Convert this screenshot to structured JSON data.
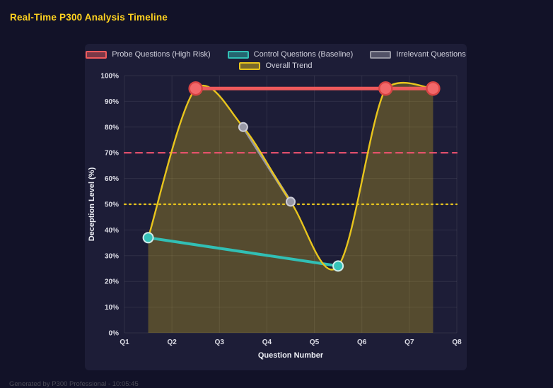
{
  "page": {
    "title": "Real-Time P300 Analysis Timeline",
    "footer": "Generated by P300 Professional - 10:05:45"
  },
  "colors": {
    "background": "#121228",
    "panel": "#1d1d37",
    "title_text": "#ffd21f",
    "grid": "rgba(255,255,255,0.08)",
    "tick_text": "#dfdfe8",
    "axis_title_text": "#eef0f6",
    "footer_text": "#4d4d58"
  },
  "chart_data": {
    "type": "line",
    "title": "Real-Time P300 Analysis Timeline",
    "xlabel": "Question Number",
    "ylabel": "Deception Level (%)",
    "x_ticks": [
      "Q1",
      "Q2",
      "Q3",
      "Q4",
      "Q5",
      "Q6",
      "Q7",
      "Q8"
    ],
    "x_range": [
      1,
      8
    ],
    "ylim": [
      0,
      100
    ],
    "y_tick_step": 10,
    "y_tick_suffix": "%",
    "grid": true,
    "legend_position": "top",
    "series": [
      {
        "name": "Probe Questions (High Risk)",
        "color": "#ee5a5c",
        "line_width": 5,
        "smooth": false,
        "marker_radius": 9,
        "marker_fill": "#f2686a",
        "marker_stroke": "#d84444",
        "marker_stroke_width": 2.5,
        "points": [
          [
            2.5,
            95
          ],
          [
            6.5,
            95
          ],
          [
            7.5,
            95
          ]
        ]
      },
      {
        "name": "Control Questions (Baseline)",
        "color": "#31bfb5",
        "line_width": 4,
        "smooth": false,
        "marker_radius": 7,
        "marker_fill": "#35c2b8",
        "marker_stroke": "#cfecea",
        "marker_stroke_width": 2,
        "points": [
          [
            1.5,
            37
          ],
          [
            5.5,
            26
          ]
        ]
      },
      {
        "name": "Irrelevant Questions",
        "color": "#9595a2",
        "line_width": 4,
        "smooth": false,
        "marker_radius": 6,
        "marker_fill": "#9898a6",
        "marker_stroke": "#cdcdd8",
        "marker_stroke_width": 2,
        "points": [
          [
            3.5,
            80
          ],
          [
            4.5,
            51
          ]
        ]
      },
      {
        "name": "Overall Trend",
        "color": "#e8c51d",
        "line_width": 2.4,
        "smooth": true,
        "fill": true,
        "fill_color": "rgba(232,197,29,0.28)",
        "marker_radius": 0,
        "points": [
          [
            1.5,
            37
          ],
          [
            2.5,
            95
          ],
          [
            3.5,
            80
          ],
          [
            4.5,
            51
          ],
          [
            5.5,
            26
          ],
          [
            6.5,
            95
          ],
          [
            7.5,
            95
          ]
        ]
      }
    ],
    "thresholds": [
      {
        "value": 70,
        "color": "#ef5370",
        "style": "dashed"
      },
      {
        "value": 50,
        "color": "#e8c51d",
        "style": "dotted"
      }
    ]
  }
}
